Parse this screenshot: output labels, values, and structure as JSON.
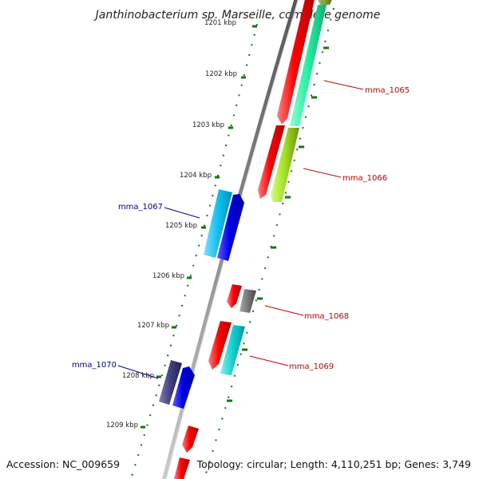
{
  "title": "Janthinobacterium sp. Marseille, complete genome",
  "accession": "Accession: NC_009659",
  "summary": "Topology: circular; Length: 4,110,251 bp; Genes: 3,749",
  "ticks": [
    "1201 kbp",
    "1202 kbp",
    "1203 kbp",
    "1204 kbp",
    "1205 kbp",
    "1206 kbp",
    "1207 kbp",
    "1208 kbp",
    "1209 kbp"
  ],
  "gene_labels": {
    "mma_1065": "mma_1065",
    "mma_1066": "mma_1066",
    "mma_1067": "mma_1067",
    "mma_1068": "mma_1068",
    "mma_1069": "mma_1069",
    "mma_1070": "mma_1070"
  },
  "colors": {
    "cds_forward": "#ff0000",
    "cds_reverse": "#0000ff",
    "minus_label": "#cc0000",
    "plus_label": "#000099",
    "tick": "#117711",
    "backbone": "#888888"
  }
}
